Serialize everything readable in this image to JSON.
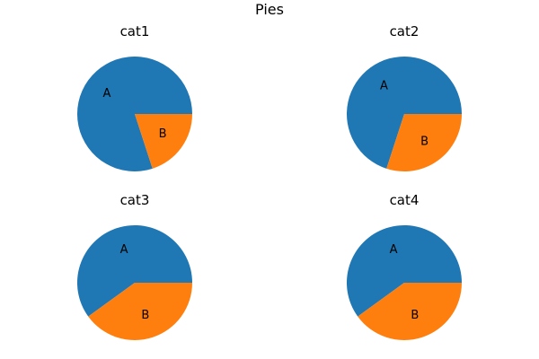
{
  "chart_data": {
    "type": "pie",
    "title": "Pies",
    "labels": [
      "A",
      "B"
    ],
    "colors": [
      "#1f77b4",
      "#ff7f0e"
    ],
    "charts": [
      {
        "title": "cat1",
        "values": [
          80,
          20
        ]
      },
      {
        "title": "cat2",
        "values": [
          70,
          30
        ]
      },
      {
        "title": "cat3",
        "values": [
          60,
          40
        ]
      },
      {
        "title": "cat4",
        "values": [
          60,
          40
        ]
      }
    ]
  }
}
